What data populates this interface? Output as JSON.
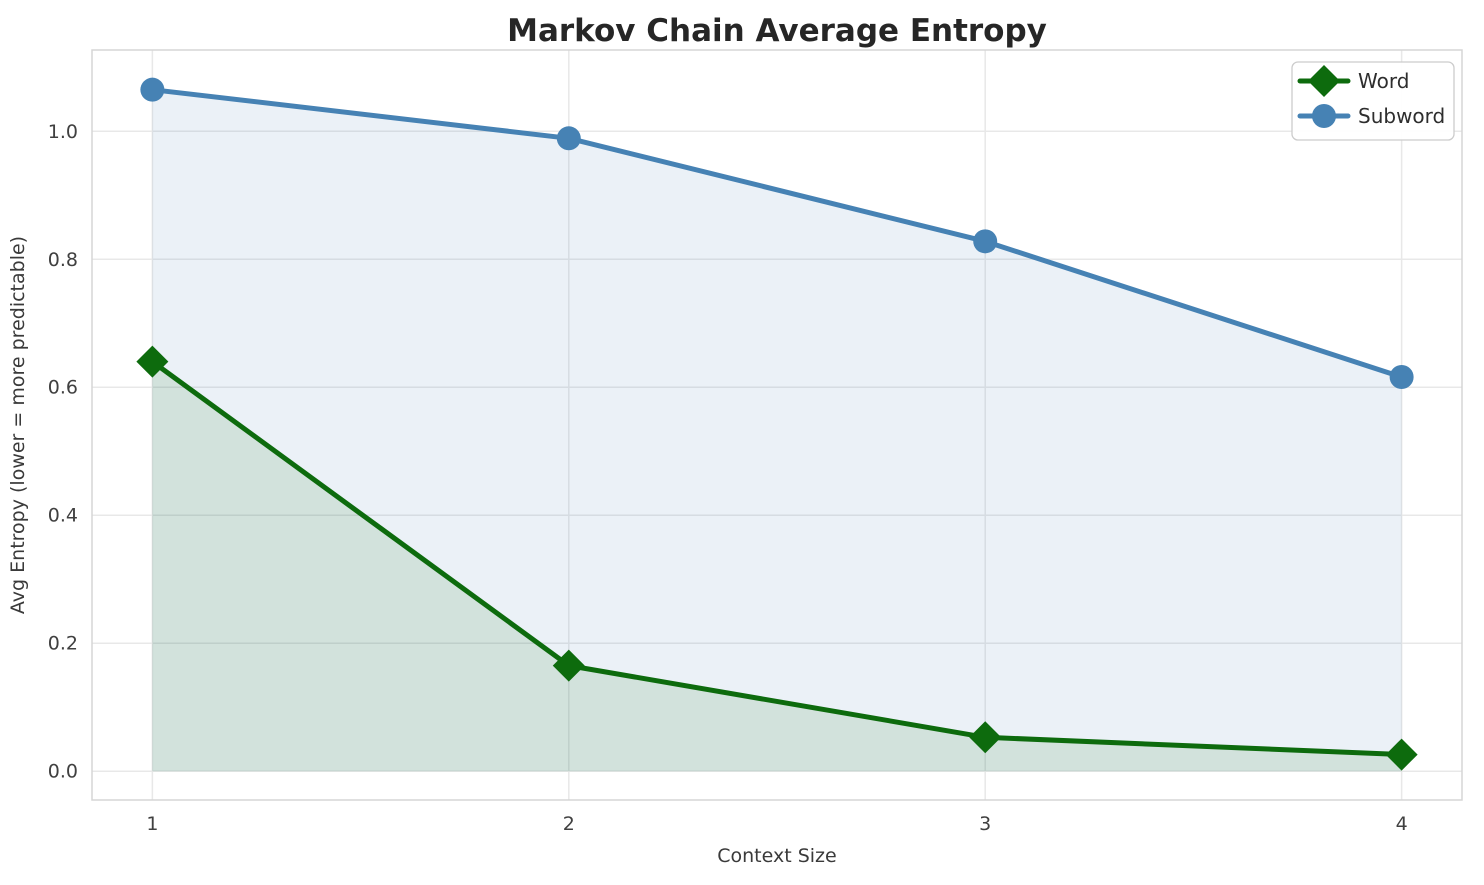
{
  "title": "Markov Chain Average Entropy",
  "chart_data": {
    "type": "line",
    "title": "Markov Chain Average Entropy",
    "xlabel": "Context Size",
    "ylabel": "Avg Entropy (lower = more predictable)",
    "x": [
      1,
      2,
      3,
      4
    ],
    "xticks": [
      "1",
      "2",
      "3",
      "4"
    ],
    "yticks": [
      "0.0",
      "0.2",
      "0.4",
      "0.6",
      "0.8",
      "1.0"
    ],
    "ytick_values": [
      0.0,
      0.2,
      0.4,
      0.6,
      0.8,
      1.0
    ],
    "xlim": [
      0.855,
      4.145
    ],
    "ylim": [
      -0.045,
      1.127
    ],
    "grid": true,
    "legend_position": "upper right",
    "fill_baseline": 0.0,
    "series": [
      {
        "name": "Word",
        "marker": "diamond",
        "color": "#0d6b0d",
        "fill": "rgba(13,107,13,0.11)",
        "values": [
          0.64,
          0.165,
          0.053,
          0.026
        ]
      },
      {
        "name": "Subword",
        "marker": "circle",
        "color": "#4682b4",
        "fill": "rgba(70,130,180,0.11)",
        "values": [
          1.065,
          0.989,
          0.828,
          0.616
        ]
      }
    ]
  }
}
